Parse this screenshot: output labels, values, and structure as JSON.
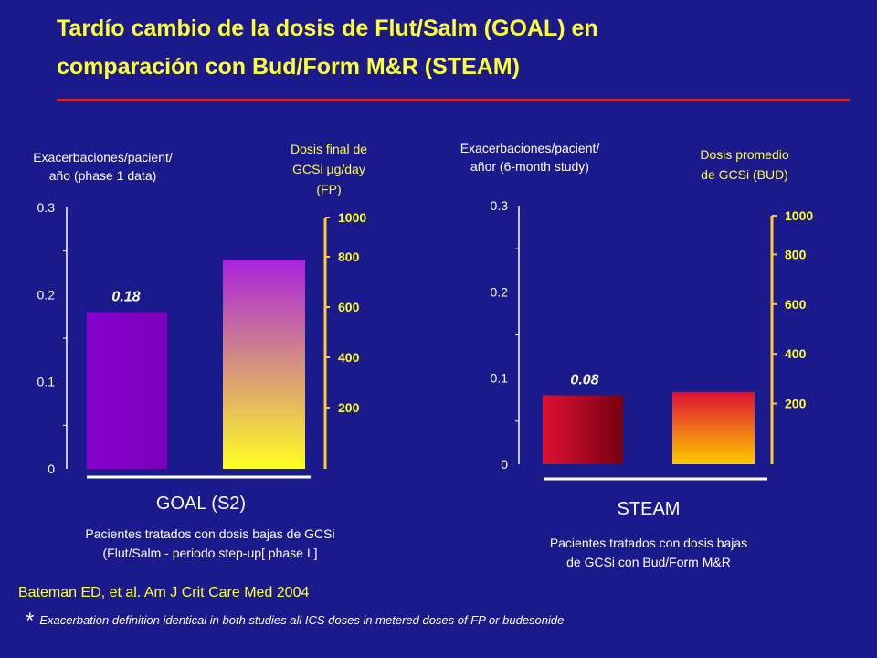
{
  "title_line1": "Tardío cambio de la dosis de Flut/Salm (GOAL) en",
  "title_line2": "comparación con Bud/Form M&R (STEAM)",
  "citation": "Bateman ED, et al. Am J Crit Care Med 2004",
  "footnote_star": "*",
  "footnote_text": "Exacerbation definition identical in both studies all ICS doses in metered doses of FP or budesonide",
  "colors": {
    "background": "#1a1a8c",
    "title": "#ffff33",
    "rule": "#cc2233",
    "dose_axis": "#ffcc33"
  },
  "chart_data": [
    {
      "type": "bar",
      "panel_label": "GOAL (S2)",
      "left_axis_label_line1": "Exacerbaciones/pacient/",
      "left_axis_label_line2": "año  (phase 1 data)",
      "right_axis_label_line1": "Dosis final de",
      "right_axis_label_line2": "GCSi µg/day",
      "right_axis_label_line3": "(FP)",
      "left_ticks": [
        "0.3",
        "0.2",
        "0.1",
        "0"
      ],
      "right_ticks": [
        "1000",
        "800",
        "600",
        "400",
        "200"
      ],
      "ylim": [
        0,
        0.3
      ],
      "dose_lim": [
        0,
        1000
      ],
      "bars": [
        {
          "axis": "exacerbations",
          "value": 0.18,
          "label": "0.18",
          "gradient": [
            "#8800cc",
            "#7a00bb"
          ]
        },
        {
          "axis": "dose",
          "value": 800,
          "label": "",
          "gradient": [
            "#aa22dd",
            "#ffff22"
          ]
        }
      ],
      "caption_line1": "Pacientes tratados con dosis bajas de GCSi",
      "caption_line2": "(Flut/Salm - periodo step-up[ phase I ]"
    },
    {
      "type": "bar",
      "panel_label": "STEAM",
      "left_axis_label_line1": "Exacerbaciones/pacient/",
      "left_axis_label_line2": "añor (6-month study)",
      "right_axis_label_line1": "Dosis promedio",
      "right_axis_label_line2": "de GCSi (BUD)",
      "right_axis_label_line3": "",
      "left_ticks": [
        "0.3",
        "0.2",
        "0.1",
        "0"
      ],
      "right_ticks": [
        "1000",
        "800",
        "600",
        "400",
        "200"
      ],
      "ylim": [
        0,
        0.3
      ],
      "dose_lim": [
        0,
        1000
      ],
      "bars": [
        {
          "axis": "exacerbations",
          "value": 0.08,
          "label": "0.08",
          "gradient": [
            "#dd1133",
            "#770011"
          ]
        },
        {
          "axis": "dose",
          "value": 280,
          "label": "",
          "gradient": [
            "#dd1133",
            "#ffcc00"
          ]
        }
      ],
      "caption_line1": "Pacientes tratados con dosis bajas",
      "caption_line2": "de GCSi con Bud/Form M&R"
    }
  ]
}
